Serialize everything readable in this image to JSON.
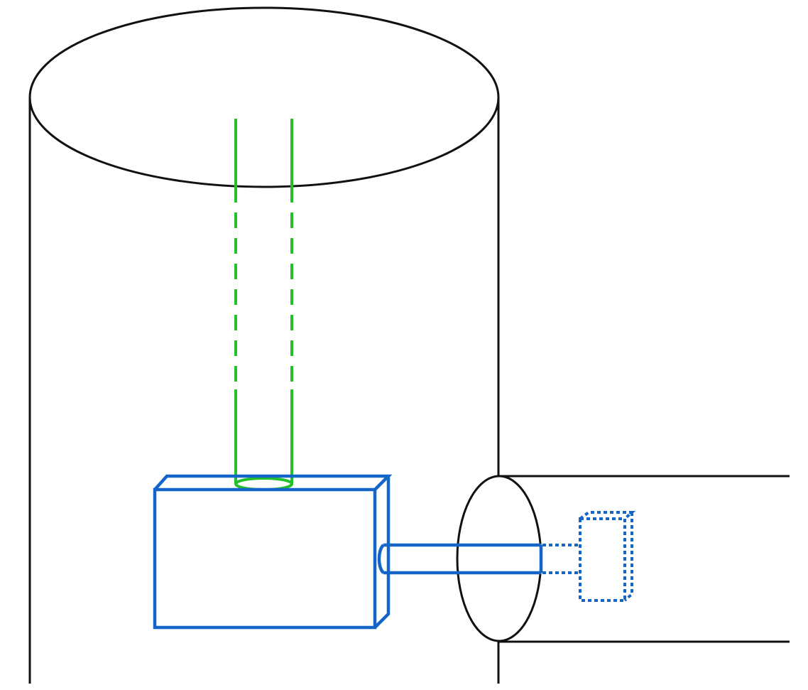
{
  "colors": {
    "background": "#ffffff",
    "outline": "#111111",
    "pipe": "#22c12b",
    "box": "#1565c8"
  },
  "elements": [
    "vertical-cylinder",
    "horizontal-cylinder",
    "green-pipe",
    "blue-box",
    "blue-shaft",
    "dotted-box"
  ]
}
